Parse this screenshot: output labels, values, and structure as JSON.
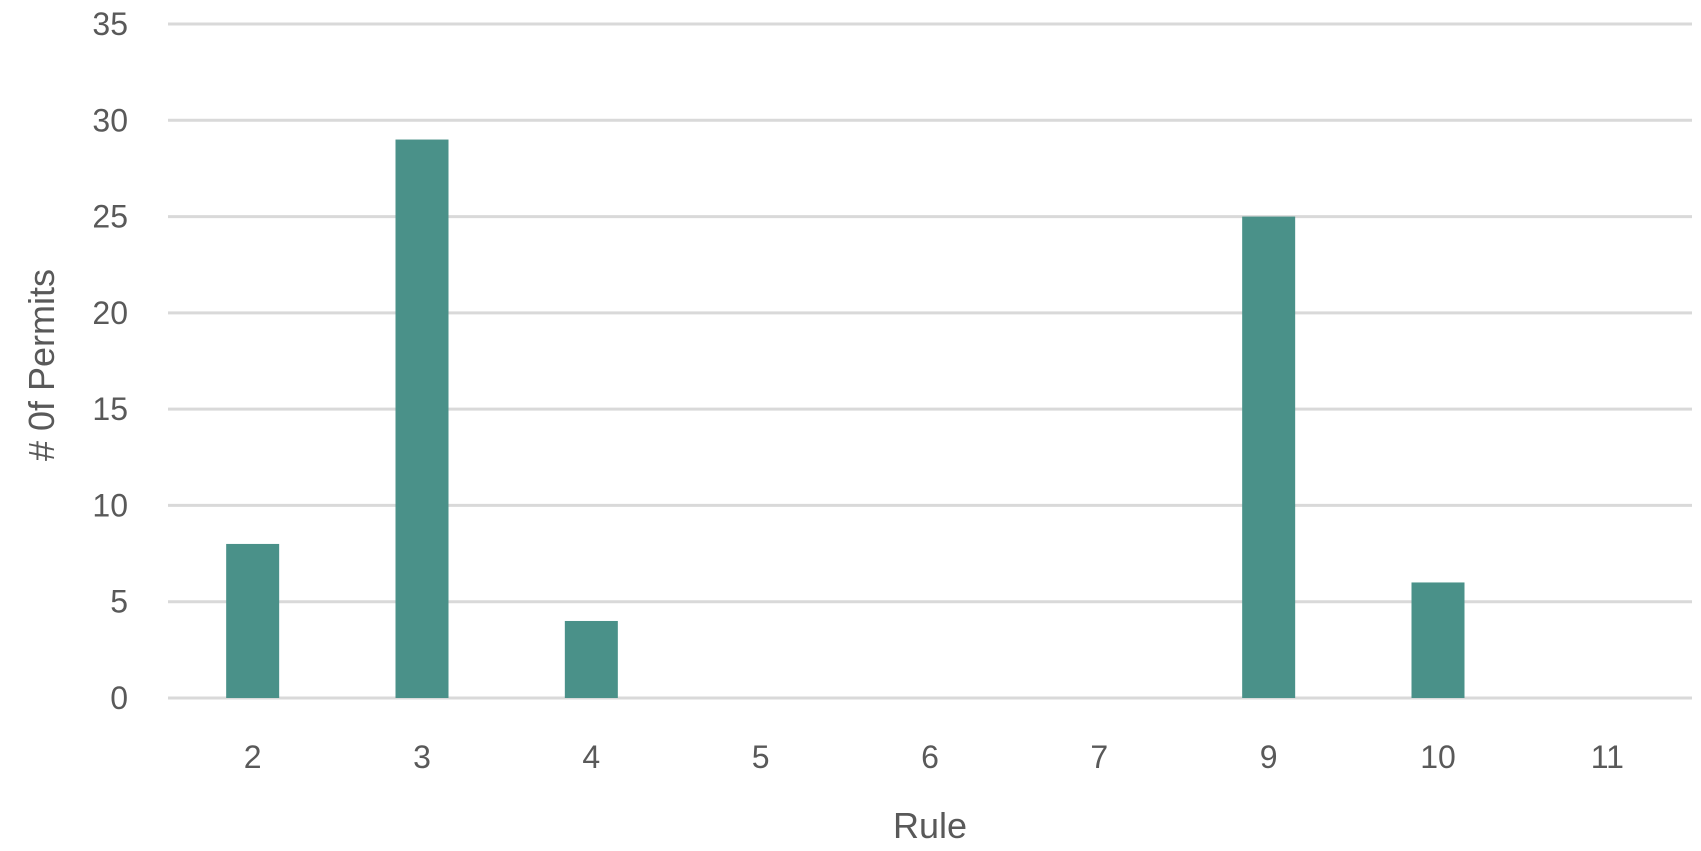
{
  "chart_data": {
    "type": "bar",
    "title": "",
    "xlabel": "Rule",
    "ylabel": "# 0f Permits",
    "categories": [
      "2",
      "3",
      "4",
      "5",
      "6",
      "7",
      "9",
      "10",
      "11"
    ],
    "values": [
      8,
      29,
      4,
      0,
      0,
      0,
      25,
      6,
      0
    ],
    "ylim": [
      0,
      35
    ],
    "yticks": [
      "0",
      "5",
      "10",
      "15",
      "20",
      "25",
      "30",
      "35"
    ],
    "grid": true,
    "legend": "none",
    "bar_color": "#4a9189",
    "grid_color": "#d9d9d9",
    "text_color": "#595959"
  }
}
